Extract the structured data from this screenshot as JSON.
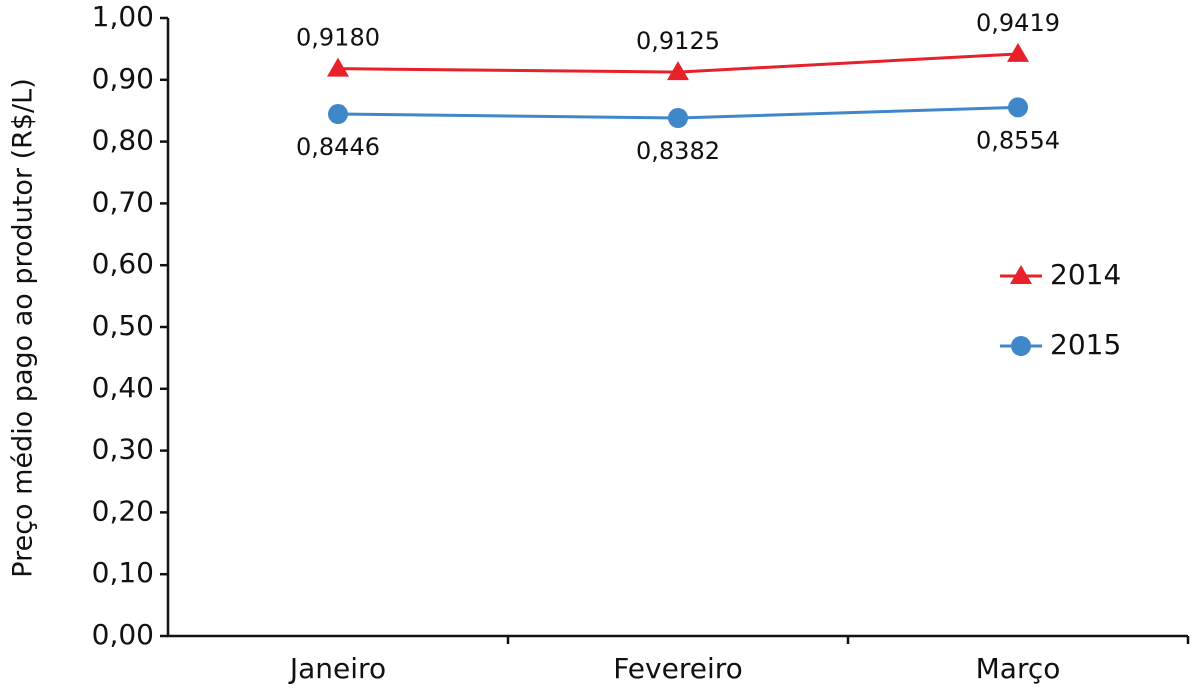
{
  "chart_data": {
    "type": "line",
    "y_label": "Preço médio pago ao produtor (R$/L)",
    "categories": [
      "Janeiro",
      "Fevereiro",
      "Março"
    ],
    "series": [
      {
        "name": "2014",
        "color": "#e8202a",
        "marker": "triangle",
        "values": [
          0.918,
          0.9125,
          0.9419
        ],
        "value_labels": [
          "0,9180",
          "0,9125",
          "0,9419"
        ],
        "label_position": "above"
      },
      {
        "name": "2015",
        "color": "#3f87c8",
        "marker": "circle",
        "values": [
          0.8446,
          0.8382,
          0.8554
        ],
        "value_labels": [
          "0,8446",
          "0,8382",
          "0,8554"
        ],
        "label_position": "below"
      }
    ],
    "ylim": [
      0,
      1
    ],
    "yticks": [
      {
        "value": 0,
        "label": "0,00"
      },
      {
        "value": 0.1,
        "label": "0,10"
      },
      {
        "value": 0.2,
        "label": "0,20"
      },
      {
        "value": 0.3,
        "label": "0,30"
      },
      {
        "value": 0.4,
        "label": "0,40"
      },
      {
        "value": 0.5,
        "label": "0,50"
      },
      {
        "value": 0.6,
        "label": "0,60"
      },
      {
        "value": 0.7,
        "label": "0,70"
      },
      {
        "value": 0.8,
        "label": "0,80"
      },
      {
        "value": 0.9,
        "label": "0,90"
      },
      {
        "value": 1,
        "label": "1,00"
      }
    ],
    "grid": false,
    "legend": "right"
  }
}
